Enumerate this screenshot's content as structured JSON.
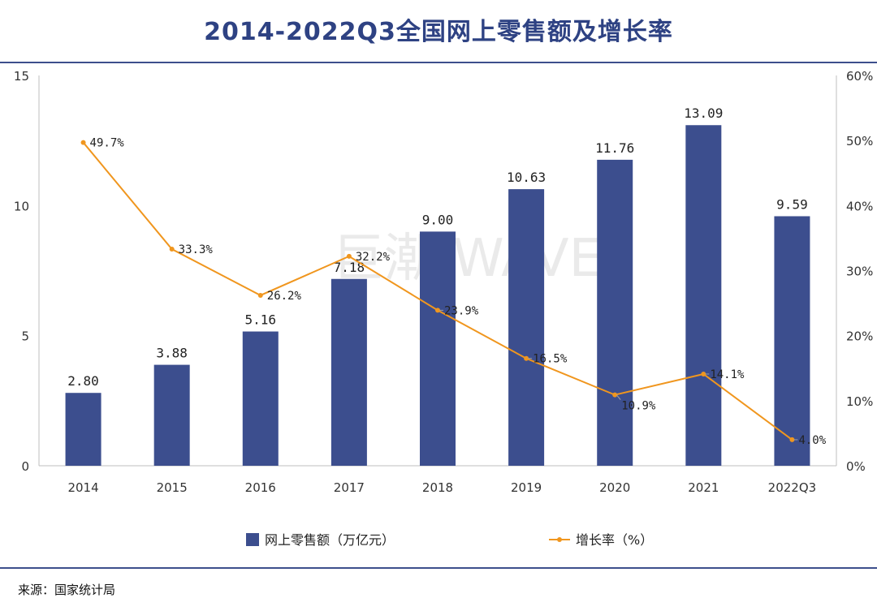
{
  "title": "2014-2022Q3全国网上零售额及增长率",
  "source": "来源：国家统计局",
  "watermark": "巨潮 WAVE",
  "colors": {
    "bar": "#3c4e8e",
    "line": "#f0961e",
    "title": "#2e4283"
  },
  "chart_data": {
    "type": "bar",
    "categories": [
      "2014",
      "2015",
      "2016",
      "2017",
      "2018",
      "2019",
      "2020",
      "2021",
      "2022Q3"
    ],
    "series": [
      {
        "name": "网上零售额（万亿元）",
        "type": "bar",
        "axis": "left",
        "values": [
          2.8,
          3.88,
          5.16,
          7.18,
          9.0,
          10.63,
          11.76,
          13.09,
          9.59
        ],
        "labels": [
          "2.80",
          "3.88",
          "5.16",
          "7.18",
          "9.00",
          "10.63",
          "11.76",
          "13.09",
          "9.59"
        ]
      },
      {
        "name": "增长率（%）",
        "type": "line",
        "axis": "right",
        "values": [
          49.7,
          33.3,
          26.2,
          32.2,
          23.9,
          16.5,
          10.9,
          14.1,
          4.0
        ],
        "labels": [
          "49.7%",
          "33.3%",
          "26.2%",
          "32.2%",
          "23.9%",
          "16.5%",
          "10.9%",
          "14.1%",
          "4.0%"
        ]
      }
    ],
    "y_left": {
      "min": 0,
      "max": 15,
      "ticks": [
        "0",
        "5",
        "10",
        "15"
      ]
    },
    "y_right": {
      "min": 0,
      "max": 60,
      "ticks": [
        "0%",
        "10%",
        "20%",
        "30%",
        "40%",
        "50%",
        "60%"
      ]
    },
    "grid": false,
    "legend_position": "bottom"
  }
}
